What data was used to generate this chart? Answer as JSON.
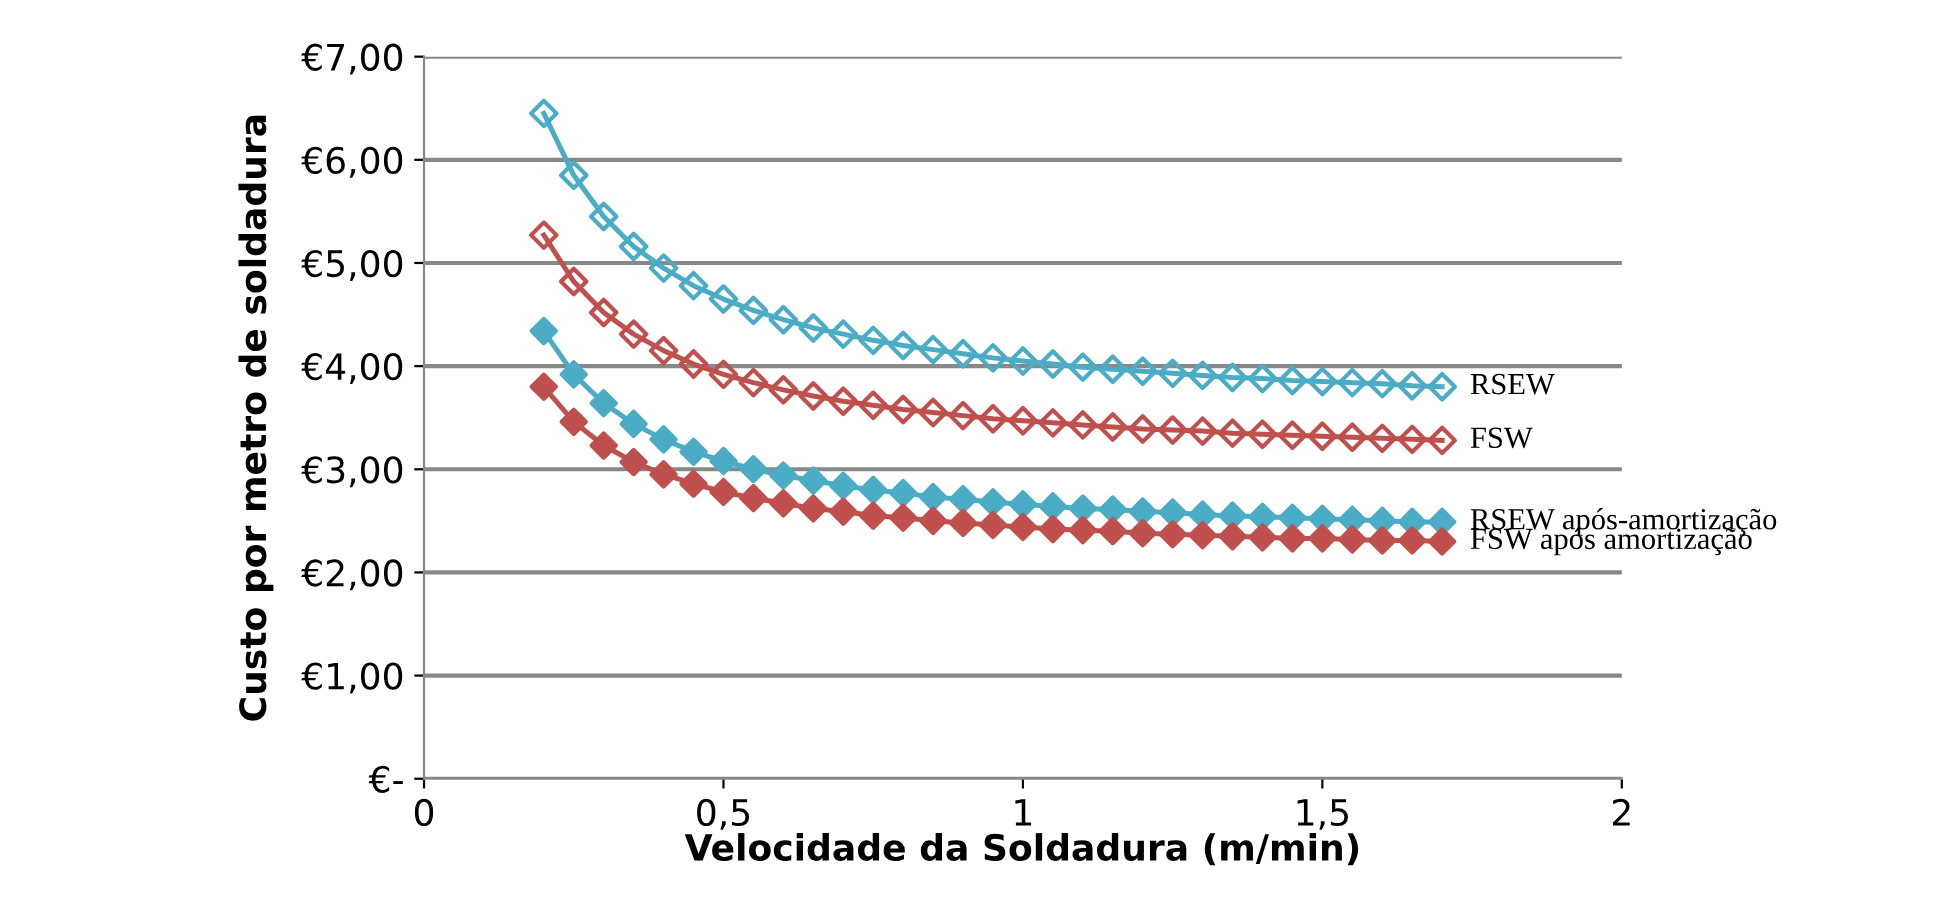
{
  "chart_data": {
    "type": "line",
    "xlabel": "Velocidade da Soldadura (m/min)",
    "ylabel": "Custo por metro de soldadura",
    "x": [
      0.2,
      0.25,
      0.3,
      0.35,
      0.4,
      0.45,
      0.5,
      0.55,
      0.6,
      0.65,
      0.7,
      0.75,
      0.8,
      0.85,
      0.9,
      0.95,
      1.0,
      1.05,
      1.1,
      1.15,
      1.2,
      1.25,
      1.3,
      1.35,
      1.4,
      1.45,
      1.5,
      1.55,
      1.6,
      1.65,
      1.7
    ],
    "series": [
      {
        "name": "RSEW",
        "color": "#4bacc6",
        "values": [
          6.45,
          5.85,
          5.45,
          5.16,
          4.95,
          4.78,
          4.65,
          4.54,
          4.45,
          4.37,
          4.31,
          4.25,
          4.2,
          4.16,
          4.12,
          4.08,
          4.05,
          4.02,
          3.99,
          3.97,
          3.95,
          3.93,
          3.91,
          3.89,
          3.88,
          3.86,
          3.85,
          3.84,
          3.83,
          3.81,
          3.8
        ]
      },
      {
        "name": "FSW",
        "color": "#c0504d",
        "values": [
          5.27,
          4.82,
          4.52,
          4.31,
          4.15,
          4.02,
          3.92,
          3.84,
          3.77,
          3.71,
          3.66,
          3.62,
          3.58,
          3.55,
          3.52,
          3.49,
          3.47,
          3.45,
          3.43,
          3.41,
          3.39,
          3.38,
          3.37,
          3.35,
          3.34,
          3.33,
          3.32,
          3.31,
          3.3,
          3.29,
          3.28
        ]
      },
      {
        "name": "RSEW após-amortização",
        "color": "#4bacc6",
        "values": [
          4.34,
          3.92,
          3.64,
          3.44,
          3.29,
          3.17,
          3.08,
          3.0,
          2.94,
          2.89,
          2.84,
          2.8,
          2.77,
          2.73,
          2.71,
          2.68,
          2.66,
          2.64,
          2.62,
          2.61,
          2.59,
          2.58,
          2.56,
          2.55,
          2.54,
          2.53,
          2.52,
          2.51,
          2.5,
          2.49,
          2.49
        ]
      },
      {
        "name": "FSW após amortização",
        "color": "#c0504d",
        "values": [
          3.8,
          3.46,
          3.23,
          3.07,
          2.95,
          2.86,
          2.78,
          2.72,
          2.67,
          2.62,
          2.59,
          2.55,
          2.53,
          2.5,
          2.48,
          2.46,
          2.44,
          2.42,
          2.41,
          2.4,
          2.38,
          2.37,
          2.36,
          2.35,
          2.34,
          2.33,
          2.33,
          2.32,
          2.31,
          2.31,
          2.3
        ]
      }
    ],
    "xlim": [
      0,
      2
    ],
    "xticks": [
      0,
      {
        "value": 0.5,
        "label": "0,5"
      },
      1,
      {
        "value": 1.5,
        "label": "1,5"
      },
      2
    ],
    "ylim": [
      0,
      7
    ],
    "yticks": [
      {
        "value": 0,
        "label": "€-"
      },
      {
        "value": 1,
        "label": "€1,00"
      },
      {
        "value": 2,
        "label": "€2,00"
      },
      {
        "value": 3,
        "label": "€3,00"
      },
      {
        "value": 4,
        "label": "€4,00"
      },
      {
        "value": 5,
        "label": "€5,00"
      },
      {
        "value": 6,
        "label": "€6,00"
      },
      {
        "value": 7,
        "label": "€7,00"
      }
    ],
    "grid": "y",
    "legend": "right",
    "marker": "diamond",
    "line_style": "solid"
  }
}
